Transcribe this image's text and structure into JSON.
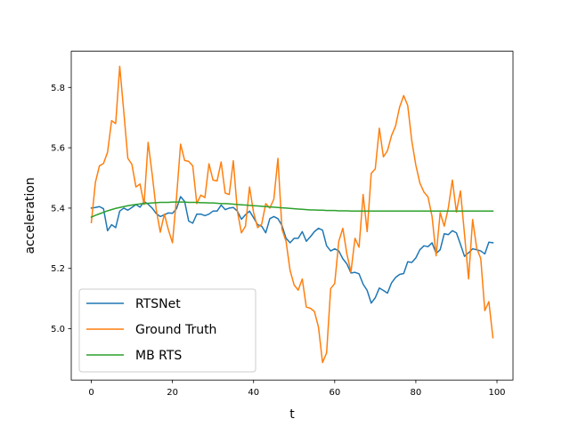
{
  "chart_data": {
    "type": "line",
    "xlabel": "t",
    "ylabel": "acceleration",
    "xlim": [
      -4.95,
      103.95
    ],
    "ylim": [
      4.83,
      5.92
    ],
    "xticks": [
      0,
      20,
      40,
      60,
      80,
      100
    ],
    "yticks": [
      5.0,
      5.2,
      5.4,
      5.6,
      5.8
    ],
    "ytick_labels": [
      "5.0",
      "5.2",
      "5.4",
      "5.6",
      "5.8"
    ],
    "grid": false,
    "legend_position": "lower-left",
    "series": [
      {
        "name": "RTSNet",
        "color": "#1f77b4",
        "values": [
          5.4,
          5.402,
          5.405,
          5.398,
          5.325,
          5.345,
          5.335,
          5.39,
          5.4,
          5.393,
          5.402,
          5.412,
          5.403,
          5.422,
          5.413,
          5.4,
          5.382,
          5.372,
          5.378,
          5.384,
          5.383,
          5.398,
          5.438,
          5.422,
          5.357,
          5.35,
          5.38,
          5.38,
          5.375,
          5.38,
          5.39,
          5.39,
          5.41,
          5.395,
          5.4,
          5.402,
          5.39,
          5.363,
          5.378,
          5.39,
          5.368,
          5.345,
          5.34,
          5.318,
          5.365,
          5.372,
          5.365,
          5.342,
          5.3,
          5.285,
          5.3,
          5.3,
          5.322,
          5.29,
          5.305,
          5.322,
          5.333,
          5.327,
          5.275,
          5.258,
          5.265,
          5.258,
          5.232,
          5.215,
          5.185,
          5.187,
          5.182,
          5.148,
          5.127,
          5.085,
          5.103,
          5.135,
          5.127,
          5.118,
          5.152,
          5.17,
          5.18,
          5.183,
          5.222,
          5.22,
          5.235,
          5.262,
          5.275,
          5.272,
          5.285,
          5.25,
          5.262,
          5.315,
          5.312,
          5.325,
          5.318,
          5.28,
          5.24,
          5.252,
          5.265,
          5.262,
          5.258,
          5.248,
          5.287,
          5.285
        ]
      },
      {
        "name": "Ground Truth",
        "color": "#ff7f0e",
        "values": [
          5.352,
          5.485,
          5.54,
          5.548,
          5.585,
          5.69,
          5.68,
          5.87,
          5.72,
          5.565,
          5.545,
          5.47,
          5.48,
          5.412,
          5.618,
          5.512,
          5.395,
          5.32,
          5.38,
          5.328,
          5.285,
          5.435,
          5.612,
          5.558,
          5.555,
          5.54,
          5.415,
          5.443,
          5.435,
          5.547,
          5.493,
          5.49,
          5.553,
          5.45,
          5.445,
          5.557,
          5.39,
          5.318,
          5.34,
          5.47,
          5.385,
          5.335,
          5.347,
          5.415,
          5.4,
          5.43,
          5.565,
          5.33,
          5.29,
          5.193,
          5.145,
          5.128,
          5.165,
          5.072,
          5.068,
          5.057,
          5.005,
          4.888,
          4.92,
          5.133,
          5.15,
          5.29,
          5.333,
          5.248,
          5.188,
          5.3,
          5.27,
          5.445,
          5.322,
          5.515,
          5.53,
          5.665,
          5.57,
          5.59,
          5.64,
          5.672,
          5.735,
          5.773,
          5.74,
          5.623,
          5.542,
          5.483,
          5.453,
          5.437,
          5.372,
          5.242,
          5.385,
          5.34,
          5.4,
          5.493,
          5.387,
          5.457,
          5.313,
          5.165,
          5.362,
          5.267,
          5.233,
          5.06,
          5.09,
          4.97
        ]
      },
      {
        "name": "MB RTS",
        "color": "#2ca02c",
        "values": [
          5.37,
          5.376,
          5.381,
          5.386,
          5.391,
          5.395,
          5.399,
          5.402,
          5.405,
          5.408,
          5.41,
          5.412,
          5.414,
          5.415,
          5.416,
          5.417,
          5.418,
          5.419,
          5.419,
          5.419,
          5.42,
          5.42,
          5.42,
          5.42,
          5.419,
          5.419,
          5.419,
          5.418,
          5.418,
          5.417,
          5.417,
          5.416,
          5.415,
          5.415,
          5.414,
          5.413,
          5.412,
          5.411,
          5.41,
          5.409,
          5.408,
          5.407,
          5.406,
          5.405,
          5.404,
          5.403,
          5.402,
          5.401,
          5.4,
          5.399,
          5.398,
          5.397,
          5.396,
          5.395,
          5.394,
          5.394,
          5.393,
          5.393,
          5.392,
          5.392,
          5.392,
          5.391,
          5.391,
          5.391,
          5.39,
          5.39,
          5.39,
          5.39,
          5.39,
          5.39,
          5.39,
          5.39,
          5.39,
          5.39,
          5.39,
          5.39,
          5.39,
          5.39,
          5.39,
          5.39,
          5.39,
          5.39,
          5.39,
          5.39,
          5.39,
          5.39,
          5.39,
          5.39,
          5.39,
          5.39,
          5.39,
          5.39,
          5.39,
          5.39,
          5.39,
          5.39,
          5.39,
          5.39,
          5.39,
          5.39
        ]
      }
    ]
  }
}
